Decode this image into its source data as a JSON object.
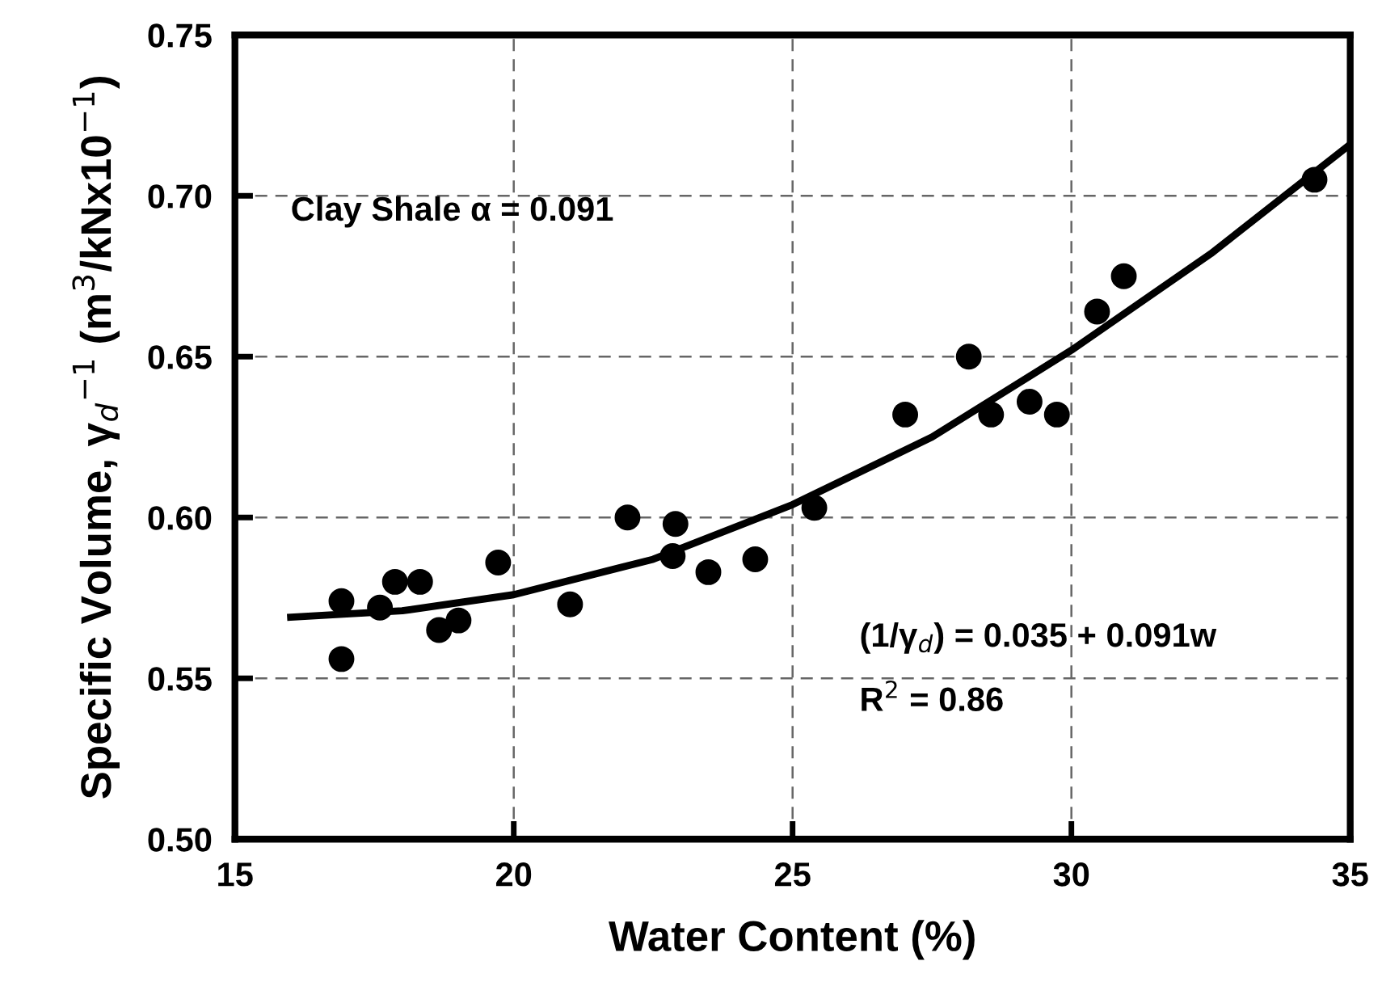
{
  "chart_data": {
    "type": "scatter",
    "xlabel": "Water Content (%)",
    "ylabel": "Specific Volume, γ$_{d}$$^{−1}$ (m$^{3}$/kNx10$^{−1}$)",
    "annotations": [
      "Clay Shale α = 0.091",
      "(1/γ$_{d}$) = 0.035 + 0.091w",
      "R$^{2}$ = 0.86"
    ],
    "xlim": [
      15,
      35
    ],
    "xticks": [
      15,
      20,
      25,
      30,
      35
    ],
    "ylim": [
      0.5,
      0.75
    ],
    "yticks": [
      {
        "value": 0.5,
        "label": "0.50"
      },
      {
        "value": 0.55,
        "label": "0.55"
      },
      {
        "value": 0.6,
        "label": "0.60"
      },
      {
        "value": 0.65,
        "label": "0.65"
      },
      {
        "value": 0.7,
        "label": "0.70"
      },
      {
        "value": 0.75,
        "label": "0.75"
      }
    ],
    "grid": true,
    "series": [
      {
        "color": "#000000",
        "marker": "circle",
        "x": [
          16.91,
          16.91,
          17.6,
          17.87,
          18.32,
          18.66,
          19.01,
          19.72,
          21.01,
          22.04,
          22.9,
          22.85,
          23.49,
          24.33,
          25.39,
          27.02,
          28.16,
          28.56,
          29.25,
          29.74,
          30.46,
          30.94,
          34.36
        ],
        "values": [
          0.574,
          0.556,
          0.572,
          0.58,
          0.58,
          0.565,
          0.568,
          0.586,
          0.573,
          0.6,
          0.598,
          0.588,
          0.583,
          0.587,
          0.603,
          0.632,
          0.65,
          0.632,
          0.636,
          0.632,
          0.664,
          0.675,
          0.705
        ]
      },
      {
        "type": "line",
        "color": "#000000",
        "marker": "none",
        "line_style": "solid",
        "x": [
          16,
          17,
          18,
          20,
          22.5,
          25,
          27.5,
          30,
          32.5,
          35
        ],
        "values": [
          0.569,
          0.57,
          0.571,
          0.576,
          0.587,
          0.604,
          0.625,
          0.652,
          0.682,
          0.716
        ]
      }
    ]
  }
}
